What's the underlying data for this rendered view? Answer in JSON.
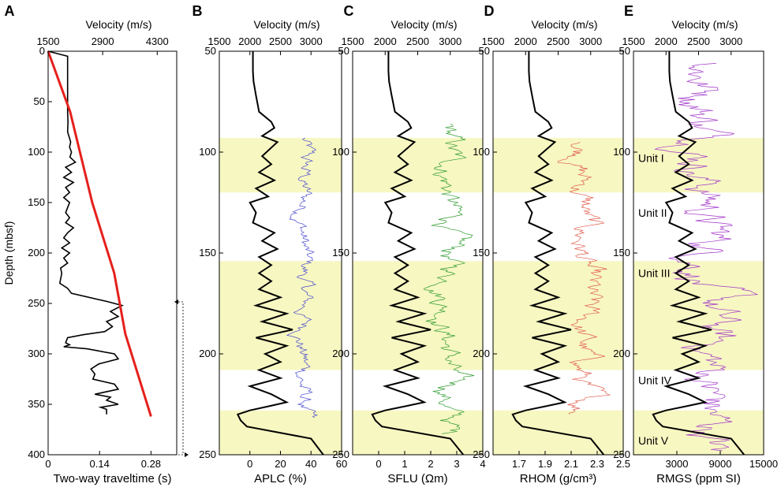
{
  "chart_data": [
    {
      "panel_letter": "A",
      "type": "line",
      "top_axis": {
        "label": "Velocity (m/s)",
        "range": [
          1500,
          4800
        ],
        "ticks": [
          1500,
          2900,
          4300
        ]
      },
      "bottom_axis": {
        "label": "Two-way traveltime (s)",
        "range": [
          0,
          0.35
        ],
        "ticks": [
          "0",
          "0.14",
          "0.28"
        ]
      },
      "left_axis": {
        "label": "Depth (mbsf)",
        "range": [
          0,
          400
        ],
        "inverted": true,
        "ticks": [
          0,
          50,
          100,
          150,
          200,
          250,
          300,
          350,
          400
        ]
      },
      "series": [
        {
          "axis": "top",
          "color": "#000000",
          "x": [
            1500,
            2000,
            2000,
            2010,
            2000,
            2080,
            2050,
            2100,
            2060,
            2200,
            1950,
            2100,
            1900,
            2150,
            1950,
            2050,
            1900,
            2050,
            2000,
            1950,
            2050,
            1950,
            2150,
            2000,
            1900,
            2050,
            1850,
            2050,
            1900,
            2000,
            1820,
            1850,
            1800,
            2000,
            2100,
            3000,
            3400,
            3100,
            3300,
            3000,
            3150,
            2950,
            2400,
            2000,
            1950,
            2050,
            1900,
            2500,
            3200,
            3300,
            2800,
            2600,
            2700,
            2650,
            3200,
            3300,
            2700,
            3100,
            3000,
            3300,
            2850,
            3000,
            3000
          ],
          "depth": [
            0,
            5,
            60,
            70,
            80,
            90,
            95,
            100,
            105,
            110,
            115,
            120,
            125,
            130,
            135,
            140,
            145,
            150,
            155,
            160,
            165,
            170,
            175,
            180,
            185,
            190,
            195,
            200,
            205,
            210,
            215,
            220,
            230,
            235,
            240,
            248,
            252,
            258,
            263,
            268,
            273,
            278,
            281,
            284,
            289,
            291,
            293,
            295,
            300,
            305,
            310,
            315,
            320,
            325,
            330,
            335,
            340,
            343,
            346,
            350,
            353,
            355,
            360
          ]
        },
        {
          "axis": "bottom",
          "color": "#e5201c",
          "x": [
            0,
            0.06,
            0.12,
            0.18,
            0.21,
            0.28
          ],
          "depth": [
            0,
            60,
            150,
            220,
            280,
            362
          ]
        }
      ]
    },
    {
      "panel_letter": "B",
      "type": "line",
      "top_axis": {
        "label": "Velocity (m/s)",
        "range": [
          1500,
          3500
        ],
        "ticks": [
          1500,
          2000,
          2500,
          3000
        ]
      },
      "bottom_axis": {
        "label": "APLC (%)",
        "range": [
          -20,
          60
        ],
        "ticks": [
          "0",
          "20",
          "40",
          "60"
        ]
      },
      "left_axis": {
        "range": [
          50,
          250
        ],
        "inverted": true,
        "ticks": [
          50,
          100,
          150,
          200,
          250
        ]
      },
      "series": [
        {
          "name": "APLC",
          "color": "#4a4ad0",
          "x_range": [
            22,
            48
          ],
          "depth_range": [
            93,
            232
          ]
        }
      ]
    },
    {
      "panel_letter": "C",
      "type": "line",
      "top_axis": {
        "label": "Velocity (m/s)",
        "range": [
          1500,
          3500
        ],
        "ticks": [
          1500,
          2000,
          2500,
          3000
        ]
      },
      "bottom_axis": {
        "label": "SFLU (Ωm)",
        "range": [
          -1,
          4
        ],
        "ticks": [
          "0",
          "1",
          "2",
          "3",
          "4"
        ]
      },
      "left_axis": {
        "range": [
          50,
          250
        ],
        "inverted": true,
        "ticks": [
          50,
          100,
          150,
          200,
          250
        ]
      },
      "series": [
        {
          "name": "SFLU",
          "color": "#2e9b2e",
          "x_range": [
            1.6,
            3.8
          ],
          "depth_range": [
            86,
            240
          ]
        }
      ]
    },
    {
      "panel_letter": "D",
      "type": "line",
      "top_axis": {
        "label": "Velocity (m/s)",
        "range": [
          1500,
          3500
        ],
        "ticks": [
          1500,
          2000,
          2500,
          3000
        ]
      },
      "bottom_axis": {
        "label": "RHOM (g/cm³)",
        "range": [
          1.5,
          2.5
        ],
        "ticks": [
          "1.7",
          "1.9",
          "2.1",
          "2.3",
          "2.5"
        ]
      },
      "left_axis": {
        "range": [
          50,
          250
        ],
        "inverted": true,
        "ticks": [
          50,
          100,
          150,
          200,
          250
        ]
      },
      "series": [
        {
          "name": "RHOM",
          "color": "#e05a4a",
          "x_range": [
            1.95,
            2.42
          ],
          "depth_range": [
            95,
            230
          ]
        }
      ]
    },
    {
      "panel_letter": "E",
      "type": "line",
      "top_axis": {
        "label": "Velocity (m/s)",
        "range": [
          1500,
          3500
        ],
        "ticks": [
          1500,
          2000,
          2500,
          3000
        ]
      },
      "bottom_axis": {
        "label": "RMGS (ppm SI)",
        "range": [
          -3000,
          15000
        ],
        "ticks": [
          "3000",
          "9000",
          "15000"
        ]
      },
      "left_axis": {
        "range": [
          50,
          250
        ],
        "inverted": true,
        "ticks": [
          50,
          100,
          150,
          200,
          250
        ]
      },
      "series": [
        {
          "name": "RMGS",
          "color": "#a035c8",
          "x_range": [
            0,
            15000
          ],
          "depth_range": [
            56,
            248
          ]
        }
      ]
    }
  ],
  "velocity_log": {
    "color": "#000000",
    "velocity": [
      2050,
      2050,
      2060,
      2100,
      2150,
      2350,
      2400,
      2200,
      2450,
      2200,
      2350,
      2150,
      2400,
      2100,
      2300,
      2000,
      2100,
      2050,
      2400,
      2200,
      2450,
      2150,
      2350,
      2150,
      2350,
      2150,
      2500,
      2100,
      2600,
      2200,
      2700,
      2100,
      2600,
      2250,
      2500,
      2150,
      2500,
      2000,
      2350,
      2600,
      2300,
      2000,
      1800,
      1850,
      1950,
      3000,
      3200
    ],
    "depth": [
      50,
      60,
      65,
      72,
      80,
      85,
      88,
      92,
      95,
      102,
      106,
      110,
      114,
      118,
      122,
      125,
      130,
      135,
      140,
      144,
      148,
      152,
      156,
      160,
      164,
      168,
      172,
      176,
      180,
      184,
      188,
      192,
      196,
      200,
      204,
      208,
      212,
      216,
      220,
      224,
      226,
      228,
      230,
      233,
      236,
      242,
      250
    ]
  },
  "units": [
    {
      "label": "Unit I",
      "top": 93,
      "bottom": 120,
      "shaded": true
    },
    {
      "label": "Unit II",
      "top": 120,
      "bottom": 154,
      "shaded": false
    },
    {
      "label": "Unit III",
      "top": 154,
      "bottom": 208,
      "shaded": true
    },
    {
      "label": "Unit IV",
      "top": 208,
      "bottom": 228,
      "shaded": false
    },
    {
      "label": "Unit V",
      "top": 228,
      "bottom": 250,
      "shaded": true
    }
  ],
  "shade_color": "#f7f7c2"
}
